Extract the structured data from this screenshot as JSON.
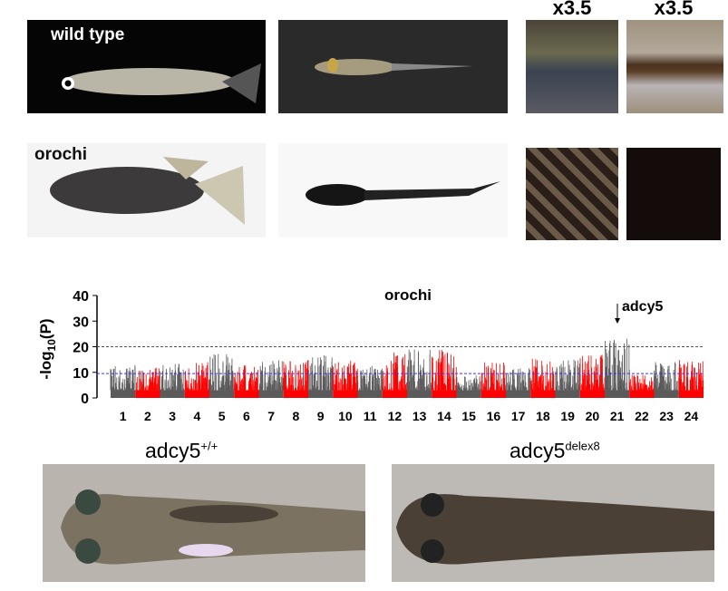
{
  "panels": {
    "wild_type_label": "wild type",
    "orochi_label": "orochi",
    "magnification_1": "x3.5",
    "magnification_2": "x3.5",
    "adcy5_wt_base": "adcy5",
    "adcy5_wt_sup": "+/+",
    "adcy5_mut_base": "adcy5",
    "adcy5_mut_sup": "delex8"
  },
  "chart_data": {
    "type": "scatter",
    "subtype": "manhattan",
    "title": "orochi",
    "ylabel_base": "-log",
    "ylabel_sub": "10",
    "ylabel_rest": "(P)",
    "ylim": [
      0,
      40
    ],
    "yticks": [
      "0",
      "10",
      "20",
      "30",
      "40"
    ],
    "annotation": "adcy5",
    "annotation_chromosome": "21",
    "thresholds": [
      {
        "value": 20,
        "color": "#555555"
      },
      {
        "value": 9.5,
        "color": "#3333ff"
      }
    ],
    "colors": {
      "odd": "#5a5a5a",
      "even": "#ff0000"
    },
    "chromosomes": [
      {
        "label": "1",
        "peak": 13
      },
      {
        "label": "2",
        "peak": 12
      },
      {
        "label": "3",
        "peak": 14
      },
      {
        "label": "4",
        "peak": 14
      },
      {
        "label": "5",
        "peak": 18
      },
      {
        "label": "6",
        "peak": 13
      },
      {
        "label": "7",
        "peak": 15
      },
      {
        "label": "8",
        "peak": 15
      },
      {
        "label": "9",
        "peak": 17
      },
      {
        "label": "10",
        "peak": 15
      },
      {
        "label": "11",
        "peak": 13
      },
      {
        "label": "12",
        "peak": 18
      },
      {
        "label": "13",
        "peak": 19
      },
      {
        "label": "14",
        "peak": 19
      },
      {
        "label": "15",
        "peak": 9
      },
      {
        "label": "16",
        "peak": 14
      },
      {
        "label": "17",
        "peak": 12
      },
      {
        "label": "18",
        "peak": 16
      },
      {
        "label": "19",
        "peak": 15
      },
      {
        "label": "20",
        "peak": 17
      },
      {
        "label": "21",
        "peak": 24
      },
      {
        "label": "22",
        "peak": 9
      },
      {
        "label": "23",
        "peak": 14
      },
      {
        "label": "24",
        "peak": 15
      }
    ]
  }
}
